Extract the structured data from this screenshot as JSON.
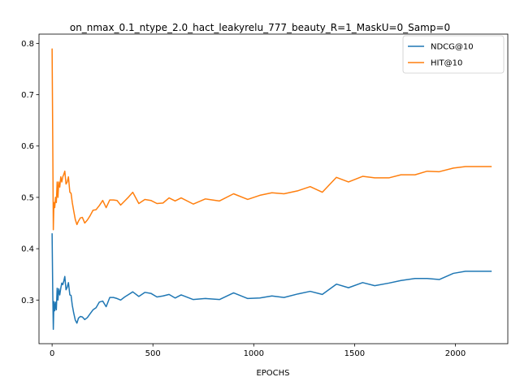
{
  "chart_data": {
    "type": "line",
    "title": "on_nmax_0.1_ntype_2.0_hact_leakyrelu_777_beauty_R=1_MaskU=0_Samp=0",
    "xlabel": "EPOCHS",
    "ylabel": "",
    "xlim": [
      -65,
      2260
    ],
    "ylim": [
      0.215,
      0.818
    ],
    "xticks": [
      0,
      500,
      1000,
      1500,
      2000
    ],
    "xtick_labels": [
      "0",
      "500",
      "1000",
      "1500",
      "2000"
    ],
    "yticks": [
      0.3,
      0.4,
      0.5,
      0.6,
      0.7,
      0.8
    ],
    "ytick_labels": [
      "0.3",
      "0.4",
      "0.5",
      "0.6",
      "0.7",
      "0.8"
    ],
    "grid": false,
    "legend_position": "top-right",
    "series": [
      {
        "name": "NDCG@10",
        "color": "#1f77b4",
        "x": [
          0,
          3,
          6,
          9,
          13,
          17,
          21,
          25,
          29,
          33,
          38,
          43,
          48,
          53,
          58,
          63,
          69,
          75,
          81,
          88,
          94,
          100,
          107,
          115,
          123,
          131,
          140,
          150,
          162,
          175,
          188,
          203,
          218,
          234,
          251,
          268,
          286,
          304,
          322,
          340,
          360,
          380,
          400,
          430,
          460,
          490,
          520,
          550,
          580,
          610,
          640,
          700,
          760,
          830,
          900,
          970,
          1030,
          1090,
          1150,
          1220,
          1280,
          1340,
          1410,
          1470,
          1540,
          1600,
          1670,
          1730,
          1800,
          1860,
          1920,
          1990,
          2050,
          2110,
          2180
        ],
        "y": [
          0.43,
          0.32,
          0.243,
          0.297,
          0.279,
          0.296,
          0.281,
          0.323,
          0.3,
          0.322,
          0.31,
          0.323,
          0.333,
          0.33,
          0.337,
          0.346,
          0.32,
          0.325,
          0.334,
          0.31,
          0.309,
          0.29,
          0.275,
          0.261,
          0.255,
          0.265,
          0.268,
          0.267,
          0.262,
          0.266,
          0.273,
          0.281,
          0.285,
          0.296,
          0.298,
          0.287,
          0.305,
          0.305,
          0.303,
          0.3,
          0.306,
          0.311,
          0.316,
          0.307,
          0.315,
          0.313,
          0.306,
          0.308,
          0.311,
          0.304,
          0.31,
          0.301,
          0.303,
          0.301,
          0.314,
          0.303,
          0.304,
          0.308,
          0.305,
          0.312,
          0.317,
          0.311,
          0.331,
          0.324,
          0.334,
          0.328,
          0.333,
          0.338,
          0.342,
          0.342,
          0.34,
          0.352,
          0.356,
          0.356,
          0.356
        ]
      },
      {
        "name": "HIT@10",
        "color": "#ff7f0e",
        "x": [
          0,
          3,
          6,
          9,
          13,
          17,
          21,
          25,
          29,
          33,
          38,
          43,
          48,
          53,
          58,
          63,
          69,
          75,
          81,
          88,
          94,
          100,
          107,
          115,
          123,
          131,
          140,
          150,
          162,
          175,
          188,
          203,
          218,
          234,
          251,
          268,
          286,
          304,
          322,
          340,
          360,
          380,
          400,
          430,
          460,
          490,
          520,
          550,
          580,
          610,
          640,
          700,
          760,
          830,
          900,
          970,
          1030,
          1090,
          1150,
          1220,
          1280,
          1340,
          1410,
          1470,
          1540,
          1600,
          1670,
          1730,
          1800,
          1860,
          1920,
          1990,
          2050,
          2110,
          2180
        ],
        "y": [
          0.79,
          0.62,
          0.437,
          0.49,
          0.48,
          0.5,
          0.49,
          0.53,
          0.5,
          0.53,
          0.52,
          0.54,
          0.53,
          0.54,
          0.545,
          0.551,
          0.526,
          0.53,
          0.54,
          0.51,
          0.508,
          0.49,
          0.474,
          0.457,
          0.447,
          0.454,
          0.46,
          0.461,
          0.45,
          0.456,
          0.464,
          0.475,
          0.476,
          0.484,
          0.494,
          0.48,
          0.495,
          0.495,
          0.494,
          0.485,
          0.493,
          0.501,
          0.51,
          0.488,
          0.496,
          0.494,
          0.488,
          0.489,
          0.499,
          0.493,
          0.499,
          0.487,
          0.497,
          0.493,
          0.507,
          0.496,
          0.504,
          0.509,
          0.507,
          0.513,
          0.521,
          0.51,
          0.539,
          0.53,
          0.541,
          0.538,
          0.538,
          0.544,
          0.544,
          0.551,
          0.55,
          0.557,
          0.56,
          0.56,
          0.56
        ]
      }
    ]
  }
}
